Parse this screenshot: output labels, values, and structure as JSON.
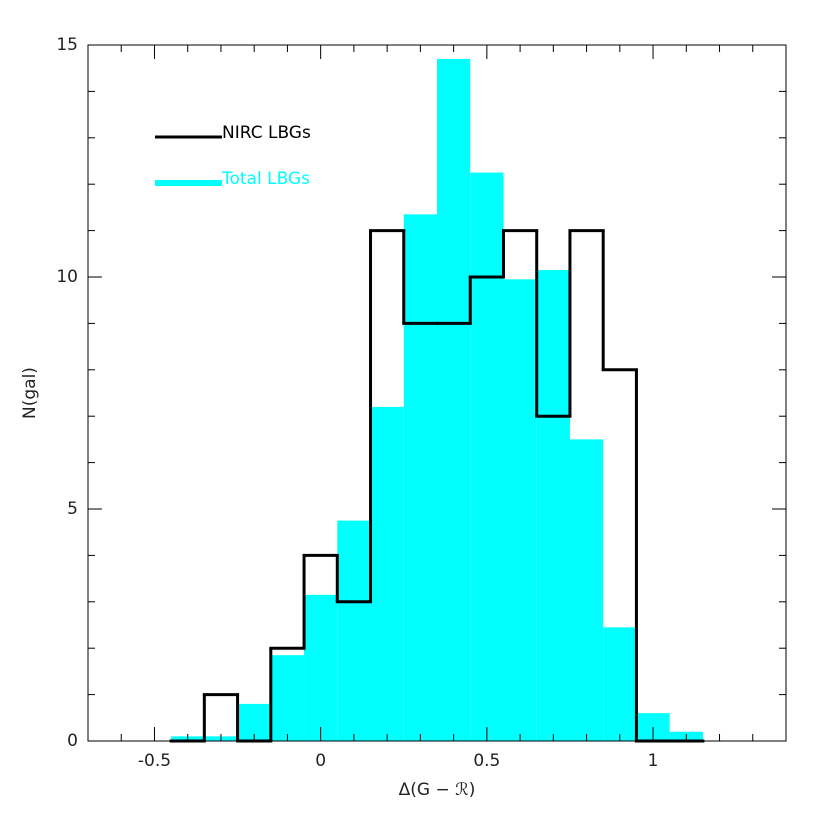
{
  "chart_data": {
    "type": "histogram",
    "x_label": "Δ(G − ℛ)",
    "y_label": "N(gal)",
    "bins": [
      -0.45,
      -0.35,
      -0.25,
      -0.15,
      -0.05,
      0.05,
      0.15,
      0.25,
      0.35,
      0.45,
      0.55,
      0.65,
      0.75,
      0.85,
      0.95,
      1.05,
      1.15
    ],
    "series": [
      {
        "name": "NIRC LBGs",
        "color": "#000000",
        "histtype": "step",
        "values": [
          0,
          1,
          0,
          2,
          4,
          3,
          11,
          9,
          9,
          10,
          11,
          7,
          11,
          8,
          0,
          0
        ]
      },
      {
        "name": "Total LBGs",
        "color": "#00ffff",
        "histtype": "bar",
        "values": [
          0.1,
          0.1,
          0.8,
          1.85,
          3.15,
          4.75,
          7.2,
          11.35,
          14.7,
          12.25,
          9.95,
          10.15,
          6.5,
          2.45,
          0.6,
          0.2
        ]
      }
    ],
    "xlim": [
      -0.7,
      1.4
    ],
    "ylim": [
      0,
      15
    ],
    "xticks": [
      -0.5,
      0,
      0.5,
      1
    ],
    "yticks": [
      0,
      5,
      10,
      15
    ],
    "xminorticks": [
      -0.6,
      -0.4,
      -0.3,
      -0.2,
      -0.1,
      0.1,
      0.2,
      0.3,
      0.4,
      0.6,
      0.7,
      0.8,
      0.9,
      1.1,
      1.2,
      1.3
    ],
    "yminorticks": [
      1,
      2,
      3,
      4,
      6,
      7,
      8,
      9,
      11,
      12,
      13,
      14
    ],
    "legend": "upper left"
  }
}
